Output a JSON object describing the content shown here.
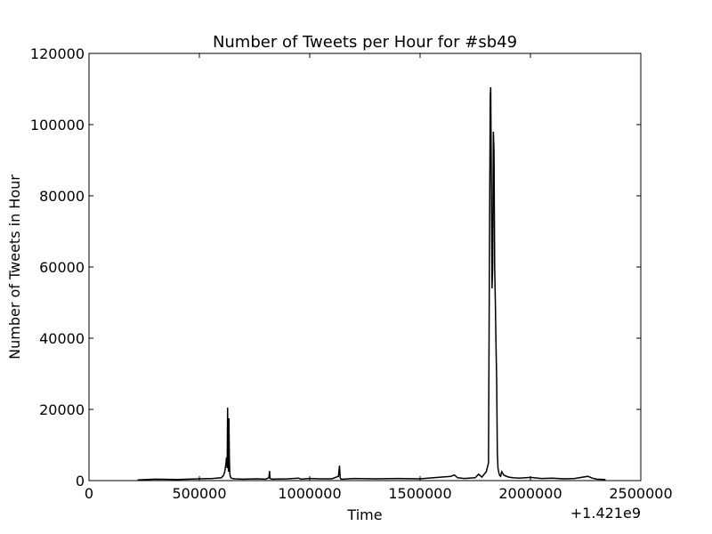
{
  "chart_data": {
    "type": "line",
    "title": "Number of Tweets per Hour for #sb49",
    "xlabel": "Time",
    "ylabel": "Number of Tweets in Hour",
    "x_offset_label": "+1.421e9",
    "xlim": [
      0,
      2500000
    ],
    "ylim": [
      0,
      120000
    ],
    "x_ticks": [
      0,
      500000,
      1000000,
      1500000,
      2000000,
      2500000
    ],
    "x_tick_labels": [
      "0",
      "500000",
      "1000000",
      "1500000",
      "2000000",
      "2500000"
    ],
    "y_ticks": [
      0,
      20000,
      40000,
      60000,
      80000,
      100000,
      120000
    ],
    "y_tick_labels": [
      "0",
      "20000",
      "40000",
      "60000",
      "80000",
      "100000",
      "120000"
    ],
    "grid": false,
    "line_color": "#000000",
    "series": [
      {
        "x": [
          220000,
          300000,
          400000,
          500000,
          560000,
          600000,
          610000,
          615000,
          620000,
          623000,
          626000,
          628000,
          630000,
          632000,
          634000,
          636000,
          638000,
          640000,
          642000,
          645000,
          650000,
          660000,
          700000,
          760000,
          800000,
          815000,
          818000,
          820000,
          825000,
          830000,
          900000,
          950000,
          960000,
          1000000,
          1050000,
          1100000,
          1130000,
          1135000,
          1138000,
          1140000,
          1145000,
          1150000,
          1200000,
          1300000,
          1400000,
          1500000,
          1580000,
          1640000,
          1655000,
          1670000,
          1700000,
          1750000,
          1765000,
          1780000,
          1800000,
          1810000,
          1815000,
          1818000,
          1820000,
          1823000,
          1826000,
          1829000,
          1832000,
          1835000,
          1838000,
          1841000,
          1844000,
          1847000,
          1850000,
          1853000,
          1856000,
          1860000,
          1865000,
          1870000,
          1880000,
          1900000,
          1920000,
          1950000,
          2000000,
          2050000,
          2100000,
          2150000,
          2200000,
          2260000,
          2280000,
          2300000,
          2340000
        ],
        "y": [
          200,
          400,
          300,
          500,
          600,
          800,
          1500,
          2500,
          4500,
          6500,
          3500,
          20500,
          5000,
          2500,
          17500,
          6000,
          2000,
          1200,
          900,
          700,
          600,
          500,
          400,
          500,
          400,
          800,
          2700,
          600,
          500,
          400,
          500,
          700,
          400,
          600,
          500,
          500,
          1200,
          4200,
          800,
          500,
          400,
          400,
          600,
          500,
          600,
          500,
          900,
          1200,
          1600,
          800,
          600,
          800,
          1800,
          1000,
          2500,
          5000,
          74000,
          108000,
          110500,
          84500,
          54000,
          60000,
          98000,
          92500,
          60000,
          50000,
          38000,
          28000,
          8000,
          3500,
          2500,
          1500,
          1200,
          2500,
          1500,
          1000,
          800,
          700,
          900,
          600,
          700,
          500,
          600,
          1200,
          700,
          400,
          300
        ]
      }
    ]
  }
}
